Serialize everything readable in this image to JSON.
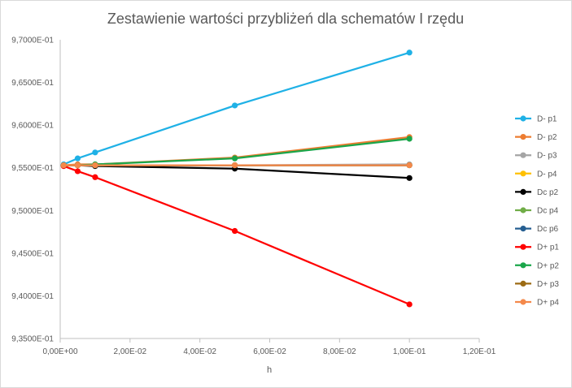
{
  "chart_data": {
    "type": "scatter",
    "title": "Zestawienie wartości przybliżeń dla schematów I rzędu",
    "xlabel": "h",
    "ylabel": "",
    "xlim": [
      0,
      0.12
    ],
    "ylim": [
      0.935,
      0.97
    ],
    "x_ticks": [
      "0,00E+00",
      "2,00E-02",
      "4,00E-02",
      "6,00E-02",
      "8,00E-02",
      "1,00E-01",
      "1,20E-01"
    ],
    "y_ticks": [
      "9,3500E-01",
      "9,4000E-01",
      "9,4500E-01",
      "9,5000E-01",
      "9,5500E-01",
      "9,6000E-01",
      "9,6500E-01",
      "9,7000E-01"
    ],
    "x_tick_values": [
      0,
      0.02,
      0.04,
      0.06,
      0.08,
      0.1,
      0.12
    ],
    "y_tick_values": [
      0.935,
      0.94,
      0.945,
      0.95,
      0.955,
      0.96,
      0.965,
      0.97
    ],
    "grid": false,
    "legend_position": "right",
    "series": [
      {
        "name": "D- p1",
        "color": "#1fb1e6",
        "x": [
          0.001,
          0.005,
          0.01,
          0.05,
          0.1
        ],
        "y": [
          0.9554,
          0.9561,
          0.9568,
          0.9623,
          0.9685
        ]
      },
      {
        "name": "D- p2",
        "color": "#ed7d31",
        "x": [
          0.001,
          0.005,
          0.01,
          0.05,
          0.1
        ],
        "y": [
          0.9553,
          0.9554,
          0.9554,
          0.9562,
          0.9586
        ]
      },
      {
        "name": "D- p3",
        "color": "#a5a5a5",
        "x": [
          0.001,
          0.005,
          0.01,
          0.05,
          0.1
        ],
        "y": [
          0.9553,
          0.9553,
          0.9553,
          0.9553,
          0.9554
        ]
      },
      {
        "name": "D- p4",
        "color": "#ffc000",
        "x": [
          0.001,
          0.005,
          0.01,
          0.05,
          0.1
        ],
        "y": [
          0.9553,
          0.9553,
          0.9553,
          0.9553,
          0.9553
        ]
      },
      {
        "name": "Dc p2",
        "color": "#000000",
        "x": [
          0.001,
          0.005,
          0.01,
          0.05,
          0.1
        ],
        "y": [
          0.9553,
          0.9553,
          0.9552,
          0.9549,
          0.9538
        ]
      },
      {
        "name": "Dc p4",
        "color": "#70ad47",
        "x": [
          0.001,
          0.005,
          0.01,
          0.05,
          0.1
        ],
        "y": [
          0.9553,
          0.9553,
          0.9553,
          0.9553,
          0.9553
        ]
      },
      {
        "name": "Dc p6",
        "color": "#255e91",
        "x": [
          0.001,
          0.005,
          0.01,
          0.05,
          0.1
        ],
        "y": [
          0.9553,
          0.9553,
          0.9553,
          0.9553,
          0.9553
        ]
      },
      {
        "name": "D+ p1",
        "color": "#ff0000",
        "x": [
          0.001,
          0.005,
          0.01,
          0.05,
          0.1
        ],
        "y": [
          0.9552,
          0.9546,
          0.9539,
          0.9476,
          0.939
        ]
      },
      {
        "name": "D+ p2",
        "color": "#1aa64a",
        "x": [
          0.001,
          0.005,
          0.01,
          0.05,
          0.1
        ],
        "y": [
          0.9553,
          0.9553,
          0.9554,
          0.9561,
          0.9584
        ]
      },
      {
        "name": "D+ p3",
        "color": "#9c6b14",
        "x": [
          0.001,
          0.005,
          0.01,
          0.05,
          0.1
        ],
        "y": [
          0.9553,
          0.9553,
          0.9553,
          0.9553,
          0.9553
        ]
      },
      {
        "name": "D+ p4",
        "color": "#f4894b",
        "x": [
          0.001,
          0.005,
          0.01,
          0.05,
          0.1
        ],
        "y": [
          0.9553,
          0.9553,
          0.9553,
          0.9553,
          0.9553
        ]
      }
    ]
  }
}
